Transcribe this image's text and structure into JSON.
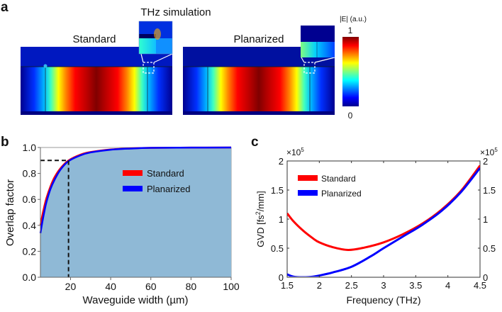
{
  "panel_labels": {
    "a": "a",
    "b": "b",
    "c": "c"
  },
  "panel_a": {
    "title": "THz simulation",
    "left_label": "Standard",
    "right_label": "Planarized",
    "colorbar": {
      "label": "|E| (a.u.)",
      "max_label": "1",
      "min_label": "0"
    }
  },
  "chart_data": [
    {
      "type": "area",
      "title": "",
      "xlabel": "Waveguide width (µm)",
      "ylabel": "Overlap factor",
      "xlim": [
        5,
        100
      ],
      "ylim": [
        0,
        1
      ],
      "xticks": [
        "20",
        "40",
        "60",
        "80",
        "100"
      ],
      "yticks": [
        "0.0",
        "0.2",
        "0.4",
        "0.6",
        "0.8",
        "1.0"
      ],
      "legend_position": "top-center",
      "fill_color": "#8fb9d6",
      "reference_point": {
        "x": 19,
        "y": 0.9
      },
      "series": [
        {
          "name": "Standard",
          "color": "#ff0000",
          "x": [
            5,
            6,
            7,
            8,
            10,
            12,
            15,
            19,
            25,
            30,
            40,
            50,
            60,
            80,
            100
          ],
          "y": [
            0.4,
            0.48,
            0.55,
            0.61,
            0.7,
            0.77,
            0.84,
            0.9,
            0.945,
            0.965,
            0.985,
            0.993,
            0.997,
            0.999,
            1.0
          ]
        },
        {
          "name": "Planarized",
          "color": "#0000ff",
          "x": [
            5,
            6,
            7,
            8,
            10,
            12,
            15,
            19,
            25,
            30,
            40,
            50,
            60,
            80,
            100
          ],
          "y": [
            0.34,
            0.43,
            0.51,
            0.58,
            0.68,
            0.75,
            0.83,
            0.895,
            0.94,
            0.962,
            0.983,
            0.992,
            0.997,
            0.999,
            1.0
          ]
        }
      ]
    },
    {
      "type": "line",
      "title": "",
      "xlabel": "Frequency (THz)",
      "ylabel": "GVD [fs²/mm]",
      "ylabel_main": "GVD [fs",
      "ylabel_sup": "2",
      "ylabel_tail": "/mm]",
      "multiplier": "×10",
      "multiplier_exp": "5",
      "xlim": [
        1.5,
        4.5
      ],
      "ylim": [
        0,
        2
      ],
      "xticks": [
        "1.5",
        "2",
        "2.5",
        "3",
        "3.5",
        "4",
        "4.5"
      ],
      "yticks": [
        "0",
        "0.5",
        "1",
        "1.5",
        "2"
      ],
      "legend_position": "top-left",
      "series": [
        {
          "name": "Standard",
          "color": "#ff0000",
          "x": [
            1.5,
            1.6,
            1.75,
            1.9,
            2.0,
            2.2,
            2.45,
            2.7,
            3.0,
            3.3,
            3.6,
            3.9,
            4.2,
            4.5
          ],
          "y": [
            1.1,
            0.96,
            0.8,
            0.67,
            0.6,
            0.52,
            0.47,
            0.51,
            0.6,
            0.74,
            0.92,
            1.16,
            1.48,
            1.92
          ]
        },
        {
          "name": "Planarized",
          "color": "#0000ff",
          "x": [
            1.5,
            1.6,
            1.75,
            1.9,
            2.0,
            2.2,
            2.5,
            2.8,
            3.0,
            3.3,
            3.6,
            3.9,
            4.2,
            4.5
          ],
          "y": [
            0.05,
            0.01,
            0.0,
            0.01,
            0.03,
            0.08,
            0.18,
            0.36,
            0.5,
            0.7,
            0.9,
            1.14,
            1.46,
            1.88
          ]
        }
      ]
    }
  ]
}
